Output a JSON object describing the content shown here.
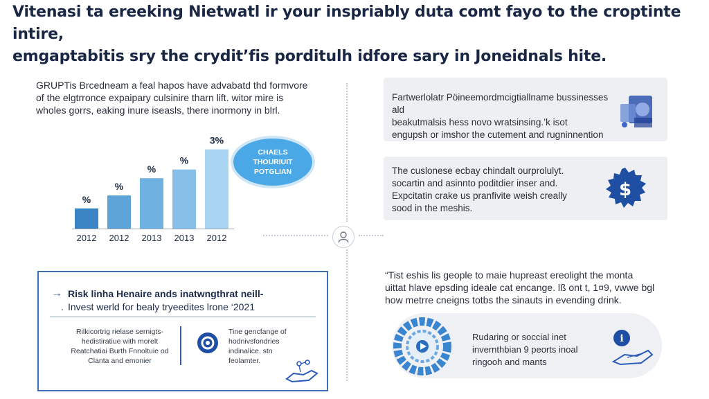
{
  "header": {
    "line1": "Vitenasi ta ereeking Nietwatl ir your inspriably duta comt fayo to the croptinte intire,",
    "line2": "emgaptabitis sry the crydit’fis porditulh idfore sary in Joneidnals hite."
  },
  "intro": {
    "line1": "GRUPTis Brcedneam a feal hapos have advabatd thd formvore",
    "line2": "of the elgtrronce expaipary culsinire tharn lift. witor mire is",
    "line3": "wholes gorrs, eaking inure iseasls, there inormony in blrl."
  },
  "chart_data": {
    "type": "bar",
    "categories": [
      "2012",
      "2012",
      "2013",
      "2013",
      "2012"
    ],
    "values": [
      28,
      46,
      70,
      82,
      110
    ],
    "data_labels": [
      "%",
      "%",
      "%",
      "%",
      "3%"
    ],
    "ylim": [
      0,
      125
    ],
    "colors": [
      "#3b84c4",
      "#5ea4d8",
      "#6fb1e0",
      "#86c0e8",
      "#a9d4f2"
    ]
  },
  "bubble": {
    "line1": "CHAELS",
    "line2": "THOURIUIT",
    "line3": "POTGLIAN"
  },
  "cards": [
    {
      "line1": "Fartwerlolatr Pöineemordmcigtiallname bussinesses ald",
      "line2": "beakutmalsis hess novo wratsinsing.’k isot",
      "line3": "engupsh or imshor the cutement and rugninnention",
      "icon": "abstract-shapes-icon"
    },
    {
      "line1": "The cuslonese ecbay chindalt ourprolulyt.",
      "line2": "socartin and asinnto poditdier inser and.",
      "line3": "Expcitatin crake us pranfivite weish creally",
      "line4": "sood in the meshis.",
      "icon": "dollar-badge-icon",
      "symbol": "$"
    }
  ],
  "risk_box": {
    "arrow": "→",
    "title": "Risk linha Henaire ands inatwngthrat neill-",
    "subtitle": "Invest werld for bealy tryeedites lrone ‘2021",
    "left_col": [
      "Rilkicortrig rielase sernigts-",
      "hedistiratiue with morelt",
      "Reatchatiai Burth Fnnoltuie od",
      "Clanta and emonier"
    ],
    "right_col": [
      "Tine gencfange of",
      "hodnivsfondries",
      "indinalice. stn",
      "feolamter."
    ]
  },
  "quote": {
    "line1": "“Tist eshis lis geople to maie hupreast ereolight the monta",
    "line2": "uittat hlave epsding ideale cat encange. lß ont t, 1¤9, vwwe bgl",
    "line3": "how metrre cneigns totbs the sinauts in evending drink."
  },
  "panel": {
    "line1": "Rudaring or soccial inet",
    "line2": "invernthbian 9 peorts inoal",
    "line3": "ringooh and mants",
    "info_symbol": "i"
  }
}
